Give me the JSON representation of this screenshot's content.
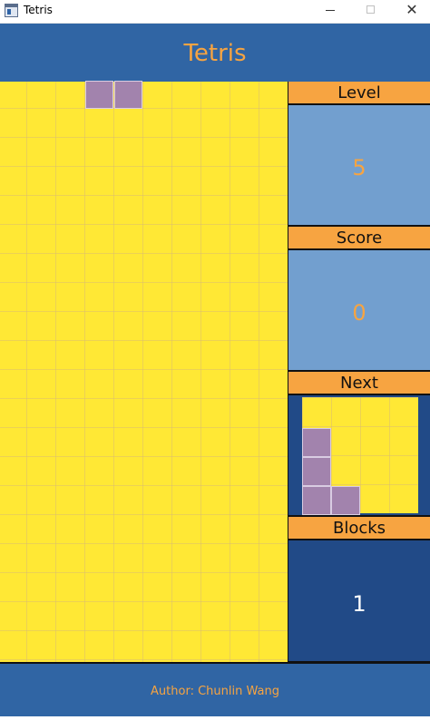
{
  "window": {
    "title": "Tetris",
    "icon": "app-window-icon",
    "minimize_glyph": "",
    "maximize_glyph": "",
    "close_glyph": "✕"
  },
  "header": {
    "title": "Tetris"
  },
  "board": {
    "columns": 10,
    "rows": 20,
    "background_color": "#ffe835",
    "active_piece_color": "#a283ad",
    "active_piece_cells": [
      [
        3,
        0
      ],
      [
        4,
        0
      ]
    ]
  },
  "side": {
    "level": {
      "label": "Level",
      "value": "5"
    },
    "score": {
      "label": "Score",
      "value": "0"
    },
    "next": {
      "label": "Next",
      "grid_size": 4,
      "cells": [
        [
          0,
          1
        ],
        [
          0,
          2
        ],
        [
          0,
          3
        ],
        [
          1,
          3
        ]
      ],
      "color": "#a283ad"
    },
    "blocks": {
      "label": "Blocks",
      "value": "1"
    }
  },
  "footer": {
    "author": "Author: Chunlin Wang"
  },
  "colors": {
    "header_blue": "#3065a4",
    "accent_orange": "#f7a441",
    "panel_light_blue": "#729fcf",
    "panel_dark_blue": "#214a87"
  }
}
